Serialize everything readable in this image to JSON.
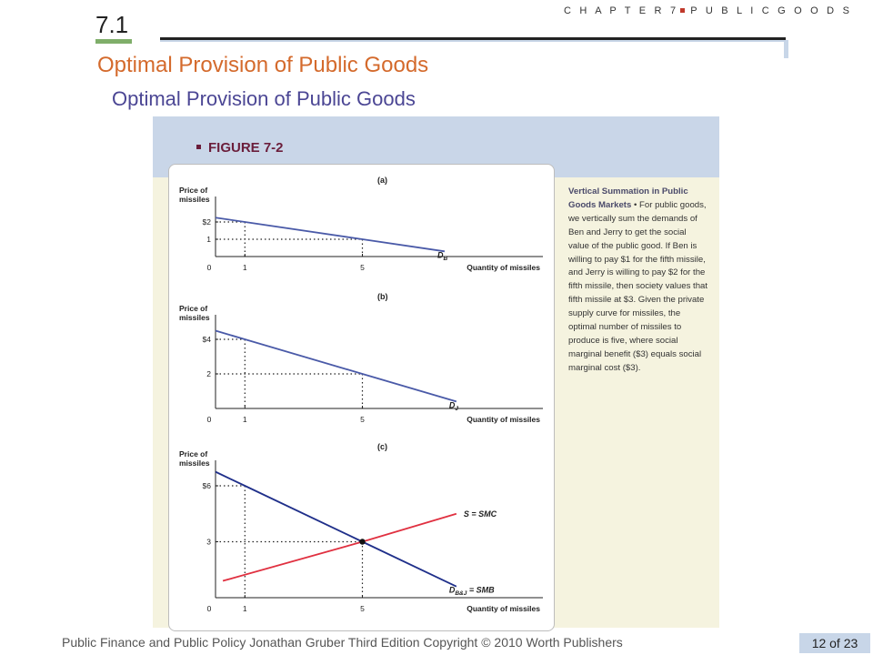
{
  "header": {
    "chapter": "C H A P T E R 7",
    "chapter_topic": "P U B L I C  G O O D S",
    "section_number": "7.1",
    "title": "Optimal Provision of Public Goods",
    "subtitle": "Optimal Provision of Public Goods"
  },
  "figure": {
    "label": "FIGURE 7-2",
    "caption_title": "Vertical Summation in Public Goods Markets",
    "caption_body": "• For public goods, we vertically sum the demands of Ben and Jerry to get the social value of the public good. If Ben is willing to pay $1 for the fifth missile, and Jerry is willing to pay $2 for the fifth missile, then society values that fifth missile at $3. Given the private supply curve for missiles, the optimal number of missiles to produce is five, where social marginal benefit ($3) equals social marginal cost ($3)."
  },
  "chart_data": [
    {
      "type": "line",
      "panel": "(a)",
      "ylabel": "Price of missiles",
      "xlabel": "Quantity of missiles",
      "x_ticks": [
        "0",
        "1",
        "5"
      ],
      "y_ticks": [
        "$2",
        "1"
      ],
      "series": [
        {
          "name": "D_B",
          "label_main": "D",
          "label_sub": "B",
          "points": [
            [
              0,
              2.25
            ],
            [
              1,
              2
            ],
            [
              5,
              1
            ],
            [
              7.8,
              0.3
            ]
          ]
        }
      ],
      "guides": [
        [
          1,
          2
        ],
        [
          5,
          1
        ]
      ]
    },
    {
      "type": "line",
      "panel": "(b)",
      "ylabel": "Price of missiles",
      "xlabel": "Quantity of missiles",
      "x_ticks": [
        "0",
        "1",
        "5"
      ],
      "y_ticks": [
        "$4",
        "2"
      ],
      "series": [
        {
          "name": "D_J",
          "label_main": "D",
          "label_sub": "J",
          "points": [
            [
              0,
              4.5
            ],
            [
              1,
              4
            ],
            [
              5,
              2
            ],
            [
              8.2,
              0.4
            ]
          ]
        }
      ],
      "guides": [
        [
          1,
          4
        ],
        [
          5,
          2
        ]
      ]
    },
    {
      "type": "line",
      "panel": "(c)",
      "ylabel": "Price of missiles",
      "xlabel": "Quantity of missiles",
      "x_ticks": [
        "0",
        "1",
        "5"
      ],
      "y_ticks": [
        "$6",
        "3"
      ],
      "series": [
        {
          "name": "D_B&J = SMB",
          "label_main": "D",
          "label_sub": "B&J",
          "label_suffix": " = SMB",
          "points": [
            [
              0,
              6.75
            ],
            [
              1,
              6
            ],
            [
              5,
              3
            ],
            [
              8.2,
              0.6
            ]
          ]
        },
        {
          "name": "S = SMC",
          "label_main": "S = SMC",
          "points": [
            [
              0.25,
              0.9
            ],
            [
              5,
              3
            ],
            [
              8.2,
              4.5
            ]
          ]
        }
      ],
      "guides": [
        [
          1,
          6
        ],
        [
          5,
          3
        ]
      ],
      "equilibrium": [
        5,
        3
      ]
    }
  ],
  "footer": {
    "text": "Public Finance and Public Policy   Jonathan Gruber   Third Edition   Copyright © 2010  Worth Publishers",
    "page": "12 of 23"
  },
  "colors": {
    "demand": "#4a5aa8",
    "smb": "#1f2f8a",
    "smc": "#e03040",
    "title": "#d46a2c",
    "subtitle": "#4b4694"
  }
}
